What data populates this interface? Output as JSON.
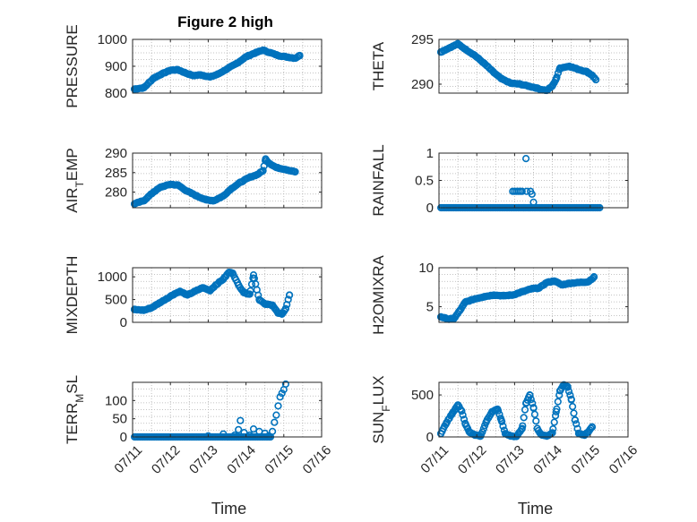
{
  "figure": {
    "title": "Figure 2 high",
    "background": "#ffffff",
    "marker_color": "#0072bd"
  },
  "chart_data": [
    {
      "type": "scatter",
      "id": "pressure",
      "title": "Figure 2 high",
      "ylabel": "PRESSURE",
      "xlabel": "",
      "xlim": [
        0,
        5
      ],
      "ylim": [
        800,
        1000
      ],
      "yticks": [
        800,
        900,
        1000
      ],
      "xticks": [
        0,
        1,
        2,
        3,
        4,
        5
      ],
      "xtick_labels": [],
      "grid": true,
      "key_points": [
        [
          0.05,
          815
        ],
        [
          0.3,
          820
        ],
        [
          0.55,
          855
        ],
        [
          0.75,
          870
        ],
        [
          1.0,
          885
        ],
        [
          1.2,
          887
        ],
        [
          1.4,
          875
        ],
        [
          1.6,
          865
        ],
        [
          1.8,
          868
        ],
        [
          2.05,
          860
        ],
        [
          2.25,
          870
        ],
        [
          2.5,
          890
        ],
        [
          2.75,
          910
        ],
        [
          3.0,
          935
        ],
        [
          3.25,
          950
        ],
        [
          3.45,
          960
        ],
        [
          3.65,
          950
        ],
        [
          3.85,
          940
        ],
        [
          4.05,
          935
        ],
        [
          4.3,
          930
        ],
        [
          4.42,
          940
        ]
      ],
      "n_points": 130
    },
    {
      "type": "scatter",
      "id": "theta",
      "title": "",
      "ylabel": "THETA",
      "xlabel": "",
      "xlim": [
        0,
        5
      ],
      "ylim": [
        289,
        295
      ],
      "yticks": [
        290,
        295
      ],
      "xticks": [
        0,
        1,
        2,
        3,
        4,
        5
      ],
      "xtick_labels": [],
      "grid": true,
      "key_points": [
        [
          0.05,
          293.6
        ],
        [
          0.3,
          294.1
        ],
        [
          0.5,
          294.5
        ],
        [
          0.7,
          293.9
        ],
        [
          0.95,
          293.2
        ],
        [
          1.2,
          292.3
        ],
        [
          1.45,
          291.3
        ],
        [
          1.65,
          290.6
        ],
        [
          1.9,
          290.1
        ],
        [
          2.15,
          290.0
        ],
        [
          2.35,
          289.8
        ],
        [
          2.55,
          289.6
        ],
        [
          2.7,
          289.4
        ],
        [
          2.85,
          289.3
        ],
        [
          3.0,
          289.8
        ],
        [
          3.1,
          290.6
        ],
        [
          3.2,
          291.8
        ],
        [
          3.45,
          292.0
        ],
        [
          3.65,
          291.7
        ],
        [
          3.9,
          291.4
        ],
        [
          4.05,
          291.0
        ],
        [
          4.15,
          290.5
        ]
      ],
      "n_points": 120
    },
    {
      "type": "scatter",
      "id": "air_temp",
      "title": "",
      "ylabel": "AIR_TEMP",
      "ylabel_main": "AIR",
      "ylabel_sub": "T",
      "ylabel_rest": "EMP",
      "xlabel": "",
      "xlim": [
        0,
        5
      ],
      "ylim": [
        276,
        290
      ],
      "yticks": [
        280,
        285,
        290
      ],
      "xticks": [
        0,
        1,
        2,
        3,
        4,
        5
      ],
      "xtick_labels": [],
      "grid": true,
      "key_points": [
        [
          0.05,
          277.0
        ],
        [
          0.3,
          277.8
        ],
        [
          0.55,
          280.0
        ],
        [
          0.75,
          281.3
        ],
        [
          1.0,
          282.0
        ],
        [
          1.2,
          281.8
        ],
        [
          1.45,
          280.2
        ],
        [
          1.7,
          279.0
        ],
        [
          1.95,
          278.0
        ],
        [
          2.15,
          277.8
        ],
        [
          2.4,
          279.0
        ],
        [
          2.6,
          280.8
        ],
        [
          2.85,
          282.5
        ],
        [
          3.1,
          283.8
        ],
        [
          3.3,
          284.5
        ],
        [
          3.45,
          285.5
        ],
        [
          3.52,
          288.5
        ],
        [
          3.6,
          287.5
        ],
        [
          3.8,
          286.3
        ],
        [
          4.05,
          285.8
        ],
        [
          4.3,
          285.2
        ]
      ],
      "n_points": 130
    },
    {
      "type": "scatter",
      "id": "rainfall",
      "title": "",
      "ylabel": "RAINFALL",
      "xlabel": "",
      "xlim": [
        0,
        5
      ],
      "ylim": [
        0,
        1
      ],
      "yticks": [
        0,
        0.5,
        1
      ],
      "ytick_labels": [
        "0",
        "0.5",
        "1"
      ],
      "xticks": [
        0,
        1,
        2,
        3,
        4,
        5
      ],
      "xtick_labels": [],
      "grid": true,
      "baseline_range": [
        0.05,
        4.25
      ],
      "baseline_value": 0,
      "baseline_n": 110,
      "nonzero_points": [
        [
          1.95,
          0.3
        ],
        [
          2.0,
          0.3
        ],
        [
          2.05,
          0.3
        ],
        [
          2.1,
          0.3
        ],
        [
          2.15,
          0.3
        ],
        [
          2.2,
          0.3
        ],
        [
          2.25,
          0.0
        ],
        [
          2.3,
          0.9
        ],
        [
          2.32,
          0.3
        ],
        [
          2.38,
          0.0
        ],
        [
          2.42,
          0.3
        ],
        [
          2.46,
          0.25
        ],
        [
          2.5,
          0.1
        ]
      ]
    },
    {
      "type": "scatter",
      "id": "mixdepth",
      "title": "",
      "ylabel": "MIXDEPTH",
      "xlabel": "",
      "xlim": [
        0,
        5
      ],
      "ylim": [
        0,
        1200
      ],
      "yticks": [
        0,
        500,
        1000
      ],
      "xticks": [
        0,
        1,
        2,
        3,
        4,
        5
      ],
      "xtick_labels": [],
      "grid": true,
      "key_points": [
        [
          0.05,
          280
        ],
        [
          0.3,
          265
        ],
        [
          0.5,
          320
        ],
        [
          0.7,
          420
        ],
        [
          0.9,
          520
        ],
        [
          1.1,
          620
        ],
        [
          1.25,
          680
        ],
        [
          1.45,
          600
        ],
        [
          1.65,
          680
        ],
        [
          1.85,
          760
        ],
        [
          2.05,
          700
        ],
        [
          2.2,
          820
        ],
        [
          2.4,
          950
        ],
        [
          2.55,
          1100
        ],
        [
          2.65,
          1080
        ],
        [
          2.8,
          820
        ],
        [
          2.95,
          650
        ],
        [
          3.1,
          620
        ],
        [
          3.2,
          1040
        ],
        [
          3.35,
          500
        ],
        [
          3.5,
          400
        ],
        [
          3.7,
          380
        ],
        [
          3.85,
          200
        ],
        [
          3.95,
          180
        ],
        [
          4.05,
          300
        ],
        [
          4.15,
          600
        ]
      ],
      "n_points": 120
    },
    {
      "type": "scatter",
      "id": "h2omixra",
      "title": "",
      "ylabel": "H2OMIXRA",
      "xlabel": "",
      "xlim": [
        0,
        5
      ],
      "ylim": [
        3,
        10
      ],
      "yticks": [
        5,
        10
      ],
      "xticks": [
        0,
        1,
        2,
        3,
        4,
        5
      ],
      "xtick_labels": [],
      "grid": true,
      "key_points": [
        [
          0.05,
          3.7
        ],
        [
          0.25,
          3.4
        ],
        [
          0.4,
          3.5
        ],
        [
          0.55,
          4.5
        ],
        [
          0.7,
          5.6
        ],
        [
          0.95,
          6.0
        ],
        [
          1.2,
          6.3
        ],
        [
          1.45,
          6.5
        ],
        [
          1.7,
          6.4
        ],
        [
          1.95,
          6.5
        ],
        [
          2.2,
          6.9
        ],
        [
          2.45,
          7.3
        ],
        [
          2.65,
          7.4
        ],
        [
          2.85,
          8.1
        ],
        [
          3.05,
          8.3
        ],
        [
          3.25,
          7.8
        ],
        [
          3.45,
          8.0
        ],
        [
          3.7,
          8.1
        ],
        [
          3.95,
          8.2
        ],
        [
          4.1,
          8.8
        ]
      ],
      "n_points": 130
    },
    {
      "type": "scatter",
      "id": "terr_msl",
      "title": "",
      "ylabel": "TERR_MSL",
      "ylabel_main": "TERR",
      "ylabel_sub": "M",
      "ylabel_rest": "SL",
      "xlabel": "Time",
      "xlim": [
        0,
        5
      ],
      "ylim": [
        0,
        150
      ],
      "yticks": [
        0,
        50,
        100
      ],
      "xticks": [
        0,
        1,
        2,
        3,
        4,
        5
      ],
      "xtick_labels": [
        "07/11",
        "07/12",
        "07/13",
        "07/14",
        "07/15",
        "07/16"
      ],
      "grid": true,
      "baseline_range": [
        0.05,
        3.65
      ],
      "baseline_value": 0,
      "baseline_n": 95,
      "extra_points": [
        [
          2.0,
          3
        ],
        [
          2.4,
          8
        ],
        [
          2.7,
          5
        ],
        [
          2.8,
          20
        ],
        [
          2.85,
          45
        ],
        [
          2.95,
          12
        ],
        [
          3.1,
          5
        ],
        [
          3.2,
          22
        ],
        [
          3.35,
          15
        ],
        [
          3.5,
          10
        ],
        [
          3.6,
          3
        ],
        [
          3.7,
          15
        ],
        [
          3.75,
          40
        ],
        [
          3.8,
          60
        ],
        [
          3.85,
          85
        ],
        [
          3.9,
          110
        ],
        [
          3.95,
          120
        ],
        [
          4.0,
          130
        ],
        [
          4.05,
          145
        ]
      ]
    },
    {
      "type": "scatter",
      "id": "sun_flux",
      "title": "",
      "ylabel": "SUN_FLUX",
      "ylabel_main": "SUN",
      "ylabel_sub": "F",
      "ylabel_rest": "LUX",
      "xlabel": "Time",
      "xlim": [
        0,
        5
      ],
      "ylim": [
        0,
        650
      ],
      "yticks": [
        0,
        500
      ],
      "xticks": [
        0,
        1,
        2,
        3,
        4,
        5
      ],
      "xtick_labels": [
        "07/11",
        "07/12",
        "07/13",
        "07/14",
        "07/15",
        "07/16"
      ],
      "grid": true,
      "key_points": [
        [
          0.05,
          40
        ],
        [
          0.2,
          170
        ],
        [
          0.35,
          280
        ],
        [
          0.5,
          380
        ],
        [
          0.6,
          310
        ],
        [
          0.7,
          150
        ],
        [
          0.8,
          60
        ],
        [
          0.95,
          20
        ],
        [
          1.1,
          10
        ],
        [
          1.25,
          180
        ],
        [
          1.4,
          300
        ],
        [
          1.55,
          330
        ],
        [
          1.65,
          200
        ],
        [
          1.75,
          40
        ],
        [
          1.9,
          10
        ],
        [
          2.05,
          5
        ],
        [
          2.2,
          100
        ],
        [
          2.3,
          400
        ],
        [
          2.4,
          500
        ],
        [
          2.5,
          350
        ],
        [
          2.6,
          100
        ],
        [
          2.7,
          30
        ],
        [
          2.85,
          10
        ],
        [
          3.0,
          50
        ],
        [
          3.1,
          300
        ],
        [
          3.2,
          550
        ],
        [
          3.3,
          620
        ],
        [
          3.4,
          600
        ],
        [
          3.5,
          450
        ],
        [
          3.6,
          200
        ],
        [
          3.7,
          40
        ],
        [
          3.85,
          20
        ],
        [
          3.95,
          60
        ],
        [
          4.05,
          120
        ]
      ],
      "n_points": 125
    }
  ]
}
